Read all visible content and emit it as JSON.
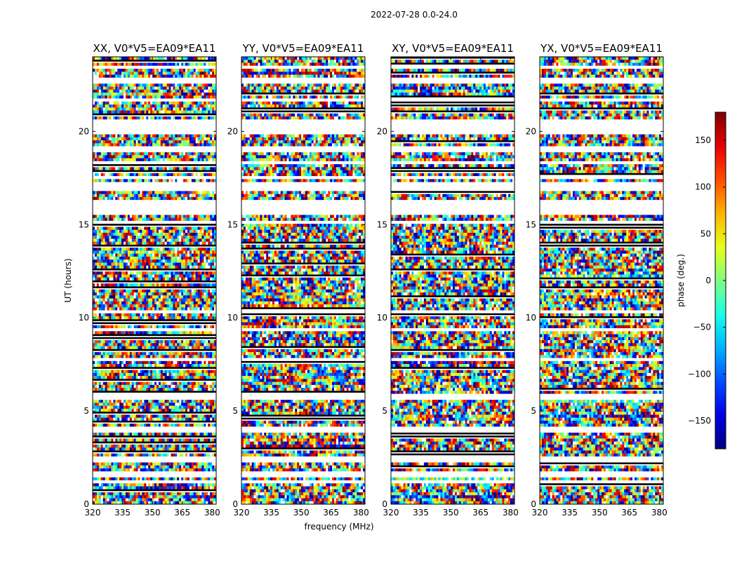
{
  "suptitle": "2022-07-28 0.0-24.0",
  "chart_data": {
    "type": "heatmap",
    "colormap": "jet",
    "panels": [
      {
        "title": "XX, V0*V5=EA09*EA11",
        "polarization": "XX"
      },
      {
        "title": "YY, V0*V5=EA09*EA11",
        "polarization": "YY"
      },
      {
        "title": "XY, V0*V5=EA09*EA11",
        "polarization": "XY"
      },
      {
        "title": "YX, V0*V5=EA09*EA11",
        "polarization": "YX"
      }
    ],
    "xlabel": "frequency (MHz)",
    "ylabel": "UT (hours)",
    "xlim": [
      320,
      382
    ],
    "ylim": [
      0,
      24
    ],
    "xticks": [
      320,
      335,
      350,
      365,
      380
    ],
    "yticks": [
      0,
      5,
      10,
      15,
      20
    ],
    "colorbar": {
      "label": "phase (deg.)",
      "range": [
        -180,
        180
      ],
      "ticks": [
        -150,
        -100,
        -50,
        0,
        50,
        100,
        150
      ]
    },
    "blank_rows_ut": [
      [
        0.25,
        0.3
      ],
      [
        1.15,
        1.2
      ],
      [
        1.5,
        1.8
      ],
      [
        2.3,
        2.5
      ],
      [
        3.9,
        4.1
      ],
      [
        5.6,
        5.85
      ],
      [
        6.1,
        6.15
      ],
      [
        7.7,
        7.8
      ],
      [
        9.35,
        9.5
      ],
      [
        10.3,
        10.4
      ],
      [
        11.2,
        11.25
      ],
      [
        13.1,
        13.15
      ],
      [
        15.0,
        15.25
      ],
      [
        15.5,
        16.3
      ],
      [
        16.8,
        17.2
      ],
      [
        17.4,
        17.6
      ],
      [
        18.2,
        18.4
      ],
      [
        18.9,
        19.2
      ],
      [
        19.9,
        20.6
      ],
      [
        21.6,
        21.8
      ],
      [
        22.6,
        22.85
      ],
      [
        23.3,
        23.5
      ]
    ]
  }
}
